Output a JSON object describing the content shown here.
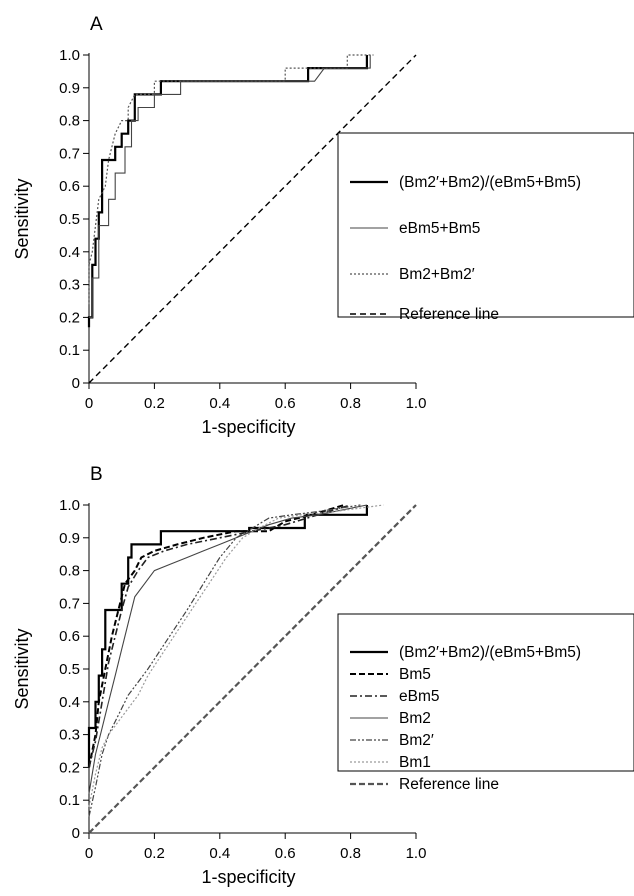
{
  "chart_data": [
    {
      "panel_label": "A",
      "type": "line",
      "xlabel": "1-specificity",
      "ylabel": "Sensitivity",
      "xlim": [
        0,
        1
      ],
      "ylim": [
        0,
        1
      ],
      "xticks": [
        "0",
        "0.2",
        "0.4",
        "0.6",
        "0.8",
        "1.0"
      ],
      "yticks": [
        "0",
        "0.1",
        "0.2",
        "0.3",
        "0.4",
        "0.5",
        "0.6",
        "0.7",
        "0.8",
        "0.9",
        "1.0"
      ],
      "legend_position": "center-right",
      "series": [
        {
          "name": "(Bm2′+Bm2)/(eBm5+Bm5)",
          "style": "solid-bold",
          "color": "#000000",
          "points": [
            [
              0,
              0.17
            ],
            [
              0,
              0.2
            ],
            [
              0.01,
              0.2
            ],
            [
              0.01,
              0.36
            ],
            [
              0.02,
              0.36
            ],
            [
              0.02,
              0.44
            ],
            [
              0.03,
              0.44
            ],
            [
              0.03,
              0.52
            ],
            [
              0.04,
              0.52
            ],
            [
              0.04,
              0.68
            ],
            [
              0.08,
              0.68
            ],
            [
              0.08,
              0.72
            ],
            [
              0.1,
              0.72
            ],
            [
              0.1,
              0.76
            ],
            [
              0.12,
              0.76
            ],
            [
              0.12,
              0.8
            ],
            [
              0.14,
              0.8
            ],
            [
              0.14,
              0.88
            ],
            [
              0.22,
              0.88
            ],
            [
              0.22,
              0.92
            ],
            [
              0.67,
              0.92
            ],
            [
              0.67,
              0.96
            ],
            [
              0.85,
              0.96
            ],
            [
              0.85,
              1.0
            ]
          ]
        },
        {
          "name": "eBm5+Bm5",
          "style": "solid-thin",
          "color": "#444444",
          "points": [
            [
              0,
              0.2
            ],
            [
              0.01,
              0.2
            ],
            [
              0.01,
              0.32
            ],
            [
              0.03,
              0.32
            ],
            [
              0.03,
              0.48
            ],
            [
              0.06,
              0.48
            ],
            [
              0.06,
              0.56
            ],
            [
              0.08,
              0.56
            ],
            [
              0.08,
              0.64
            ],
            [
              0.11,
              0.64
            ],
            [
              0.11,
              0.72
            ],
            [
              0.13,
              0.72
            ],
            [
              0.13,
              0.8
            ],
            [
              0.15,
              0.8
            ],
            [
              0.15,
              0.84
            ],
            [
              0.2,
              0.84
            ],
            [
              0.2,
              0.88
            ],
            [
              0.28,
              0.88
            ],
            [
              0.28,
              0.92
            ],
            [
              0.69,
              0.92
            ],
            [
              0.72,
              0.96
            ],
            [
              0.86,
              0.96
            ],
            [
              0.86,
              1.0
            ]
          ]
        },
        {
          "name": "Bm2+Bm2′",
          "style": "dotted",
          "color": "#555555",
          "points": [
            [
              0,
              0.24
            ],
            [
              0,
              0.36
            ],
            [
              0.01,
              0.4
            ],
            [
              0.02,
              0.48
            ],
            [
              0.03,
              0.56
            ],
            [
              0.05,
              0.6
            ],
            [
              0.06,
              0.68
            ],
            [
              0.08,
              0.76
            ],
            [
              0.1,
              0.8
            ],
            [
              0.12,
              0.8
            ],
            [
              0.12,
              0.84
            ],
            [
              0.14,
              0.88
            ],
            [
              0.2,
              0.88
            ],
            [
              0.2,
              0.92
            ],
            [
              0.6,
              0.92
            ],
            [
              0.6,
              0.96
            ],
            [
              0.79,
              0.96
            ],
            [
              0.79,
              1.0
            ],
            [
              0.87,
              1.0
            ]
          ]
        },
        {
          "name": "Reference line",
          "style": "dashed",
          "color": "#000000",
          "points": [
            [
              0,
              0
            ],
            [
              1,
              1
            ]
          ]
        }
      ]
    },
    {
      "panel_label": "B",
      "type": "line",
      "xlabel": "1-specificity",
      "ylabel": "Sensitivity",
      "xlim": [
        0,
        1
      ],
      "ylim": [
        0,
        1
      ],
      "xticks": [
        "0",
        "0.2",
        "0.4",
        "0.6",
        "0.8",
        "1.0"
      ],
      "yticks": [
        "0",
        "0.1",
        "0.2",
        "0.3",
        "0.4",
        "0.5",
        "0.6",
        "0.7",
        "0.8",
        "0.9",
        "1.0"
      ],
      "legend_position": "center-right",
      "series": [
        {
          "name": "(Bm2′+Bm2)/(eBm5+Bm5)",
          "style": "solid-bold",
          "color": "#000000",
          "points": [
            [
              0,
              0.2
            ],
            [
              0,
              0.32
            ],
            [
              0.02,
              0.32
            ],
            [
              0.02,
              0.4
            ],
            [
              0.03,
              0.4
            ],
            [
              0.03,
              0.48
            ],
            [
              0.04,
              0.48
            ],
            [
              0.04,
              0.56
            ],
            [
              0.05,
              0.56
            ],
            [
              0.05,
              0.68
            ],
            [
              0.1,
              0.68
            ],
            [
              0.1,
              0.76
            ],
            [
              0.12,
              0.76
            ],
            [
              0.12,
              0.84
            ],
            [
              0.13,
              0.84
            ],
            [
              0.13,
              0.88
            ],
            [
              0.22,
              0.88
            ],
            [
              0.22,
              0.92
            ],
            [
              0.49,
              0.92
            ],
            [
              0.49,
              0.93
            ],
            [
              0.66,
              0.93
            ],
            [
              0.66,
              0.97
            ],
            [
              0.85,
              0.97
            ],
            [
              0.85,
              1.0
            ]
          ]
        },
        {
          "name": "Bm5",
          "style": "dashed-bold",
          "color": "#000000",
          "points": [
            [
              0,
              0.2
            ],
            [
              0.02,
              0.3
            ],
            [
              0.03,
              0.4
            ],
            [
              0.05,
              0.5
            ],
            [
              0.07,
              0.6
            ],
            [
              0.09,
              0.68
            ],
            [
              0.11,
              0.76
            ],
            [
              0.14,
              0.8
            ],
            [
              0.16,
              0.84
            ],
            [
              0.2,
              0.86
            ],
            [
              0.27,
              0.88
            ],
            [
              0.35,
              0.9
            ],
            [
              0.45,
              0.92
            ],
            [
              0.55,
              0.92
            ],
            [
              0.6,
              0.95
            ],
            [
              0.68,
              0.97
            ],
            [
              0.78,
              1.0
            ]
          ]
        },
        {
          "name": "eBm5",
          "style": "dashdot",
          "color": "#222222",
          "points": [
            [
              0,
              0.2
            ],
            [
              0.02,
              0.28
            ],
            [
              0.04,
              0.4
            ],
            [
              0.06,
              0.52
            ],
            [
              0.08,
              0.6
            ],
            [
              0.1,
              0.68
            ],
            [
              0.12,
              0.75
            ],
            [
              0.15,
              0.8
            ],
            [
              0.18,
              0.84
            ],
            [
              0.23,
              0.86
            ],
            [
              0.3,
              0.88
            ],
            [
              0.4,
              0.9
            ],
            [
              0.5,
              0.92
            ],
            [
              0.6,
              0.94
            ],
            [
              0.7,
              0.97
            ],
            [
              0.8,
              1.0
            ]
          ]
        },
        {
          "name": "Bm2",
          "style": "solid-thin",
          "color": "#444444",
          "points": [
            [
              0,
              0.12
            ],
            [
              0.02,
              0.24
            ],
            [
              0.04,
              0.32
            ],
            [
              0.06,
              0.4
            ],
            [
              0.08,
              0.48
            ],
            [
              0.1,
              0.56
            ],
            [
              0.12,
              0.64
            ],
            [
              0.14,
              0.72
            ],
            [
              0.17,
              0.76
            ],
            [
              0.2,
              0.8
            ],
            [
              0.25,
              0.82
            ],
            [
              0.3,
              0.84
            ],
            [
              0.35,
              0.86
            ],
            [
              0.4,
              0.88
            ],
            [
              0.45,
              0.9
            ],
            [
              0.5,
              0.92
            ],
            [
              0.55,
              0.94
            ],
            [
              0.62,
              0.96
            ],
            [
              0.7,
              0.97
            ],
            [
              0.85,
              1.0
            ]
          ]
        },
        {
          "name": "Bm2′",
          "style": "dashdotdot",
          "color": "#444444",
          "points": [
            [
              0,
              0.05
            ],
            [
              0.02,
              0.14
            ],
            [
              0.04,
              0.24
            ],
            [
              0.06,
              0.3
            ],
            [
              0.08,
              0.34
            ],
            [
              0.1,
              0.38
            ],
            [
              0.12,
              0.42
            ],
            [
              0.15,
              0.46
            ],
            [
              0.18,
              0.5
            ],
            [
              0.22,
              0.56
            ],
            [
              0.26,
              0.62
            ],
            [
              0.3,
              0.68
            ],
            [
              0.35,
              0.76
            ],
            [
              0.4,
              0.84
            ],
            [
              0.45,
              0.9
            ],
            [
              0.5,
              0.93
            ],
            [
              0.55,
              0.96
            ],
            [
              0.62,
              0.97
            ],
            [
              0.7,
              0.98
            ],
            [
              0.83,
              1.0
            ]
          ]
        },
        {
          "name": "Bm1",
          "style": "dotted",
          "color": "#9a9a9a",
          "points": [
            [
              0,
              0.08
            ],
            [
              0.02,
              0.18
            ],
            [
              0.04,
              0.26
            ],
            [
              0.06,
              0.3
            ],
            [
              0.09,
              0.34
            ],
            [
              0.12,
              0.38
            ],
            [
              0.15,
              0.42
            ],
            [
              0.18,
              0.48
            ],
            [
              0.22,
              0.54
            ],
            [
              0.26,
              0.6
            ],
            [
              0.3,
              0.66
            ],
            [
              0.34,
              0.72
            ],
            [
              0.38,
              0.78
            ],
            [
              0.42,
              0.84
            ],
            [
              0.47,
              0.9
            ],
            [
              0.52,
              0.93
            ],
            [
              0.58,
              0.96
            ],
            [
              0.65,
              0.97
            ],
            [
              0.75,
              0.98
            ],
            [
              0.9,
              1.0
            ]
          ]
        },
        {
          "name": "Reference line",
          "style": "dashed-gray",
          "color": "#555555",
          "points": [
            [
              0,
              0
            ],
            [
              1,
              1
            ]
          ]
        }
      ]
    }
  ]
}
